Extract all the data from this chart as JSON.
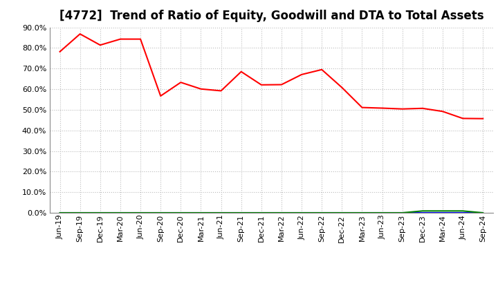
{
  "title": "[4772]  Trend of Ratio of Equity, Goodwill and DTA to Total Assets",
  "x_labels": [
    "Jun-19",
    "Sep-19",
    "Dec-19",
    "Mar-20",
    "Jun-20",
    "Sep-20",
    "Dec-20",
    "Mar-21",
    "Jun-21",
    "Sep-21",
    "Dec-21",
    "Mar-22",
    "Jun-22",
    "Sep-22",
    "Dec-22",
    "Mar-23",
    "Jun-23",
    "Sep-23",
    "Dec-23",
    "Mar-24",
    "Jun-24",
    "Sep-24"
  ],
  "equity": [
    0.782,
    0.868,
    0.814,
    0.843,
    0.843,
    0.567,
    0.633,
    0.601,
    0.592,
    0.685,
    0.621,
    0.622,
    0.671,
    0.695,
    0.608,
    0.511,
    0.508,
    0.504,
    0.507,
    0.492,
    0.458,
    0.457
  ],
  "goodwill": [
    0.0,
    0.0,
    0.0,
    0.0,
    0.0,
    0.0,
    0.0,
    0.0,
    0.0,
    0.0,
    0.0,
    0.0,
    0.0,
    0.0,
    0.0,
    0.0,
    0.0,
    0.0,
    0.0,
    0.0,
    0.0,
    0.0
  ],
  "dta": [
    0.0,
    0.0,
    0.0,
    0.0,
    0.0,
    0.0,
    0.0,
    0.0,
    0.0,
    0.0,
    0.0,
    0.0,
    0.0,
    0.0,
    0.0,
    0.0,
    0.0,
    0.0,
    0.009,
    0.009,
    0.009,
    0.0
  ],
  "equity_color": "#FF0000",
  "goodwill_color": "#0000FF",
  "dta_color": "#008000",
  "bg_color": "#FFFFFF",
  "plot_bg_color": "#FFFFFF",
  "grid_color": "#BBBBBB",
  "ylim": [
    0.0,
    0.9
  ],
  "yticks": [
    0.0,
    0.1,
    0.2,
    0.3,
    0.4,
    0.5,
    0.6,
    0.7,
    0.8,
    0.9
  ],
  "title_fontsize": 12,
  "tick_fontsize": 8,
  "legend_fontsize": 9
}
